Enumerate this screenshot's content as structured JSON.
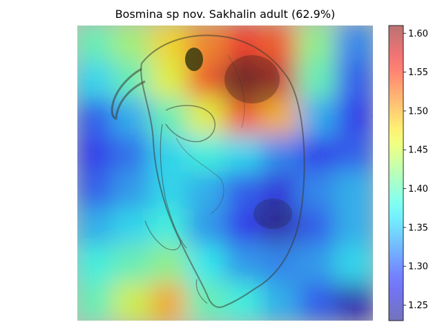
{
  "chart_data": {
    "type": "heatmap",
    "title": "Bosmina sp nov. Sakhalin adult (62.9%)",
    "subject": "Bosmina specimen micrograph (grayscale) with saliency heatmap overlay",
    "colormap": "jet",
    "overlay_alpha": 0.5,
    "colorbar": {
      "position": "right",
      "range": [
        1.23,
        1.61
      ],
      "ticks": [
        1.25,
        1.3,
        1.35,
        1.4,
        1.45,
        1.5,
        1.55,
        1.6
      ],
      "tick_labels": [
        "1.25",
        "1.30",
        "1.35",
        "1.40",
        "1.45",
        "1.50",
        "1.55",
        "1.60"
      ]
    },
    "grid": false,
    "axes_visible": false,
    "grid_rows": 8,
    "grid_cols": 8,
    "values": [
      [
        1.4,
        1.43,
        1.48,
        1.52,
        1.56,
        1.54,
        1.42,
        1.32
      ],
      [
        1.36,
        1.4,
        1.46,
        1.54,
        1.61,
        1.58,
        1.4,
        1.3
      ],
      [
        1.3,
        1.34,
        1.4,
        1.46,
        1.54,
        1.5,
        1.34,
        1.28
      ],
      [
        1.28,
        1.31,
        1.36,
        1.38,
        1.36,
        1.32,
        1.28,
        1.3
      ],
      [
        1.3,
        1.33,
        1.36,
        1.34,
        1.3,
        1.27,
        1.32,
        1.34
      ],
      [
        1.34,
        1.36,
        1.38,
        1.33,
        1.28,
        1.25,
        1.3,
        1.34
      ],
      [
        1.38,
        1.4,
        1.42,
        1.37,
        1.33,
        1.32,
        1.33,
        1.36
      ],
      [
        1.4,
        1.45,
        1.5,
        1.4,
        1.38,
        1.34,
        1.3,
        1.25
      ]
    ]
  }
}
